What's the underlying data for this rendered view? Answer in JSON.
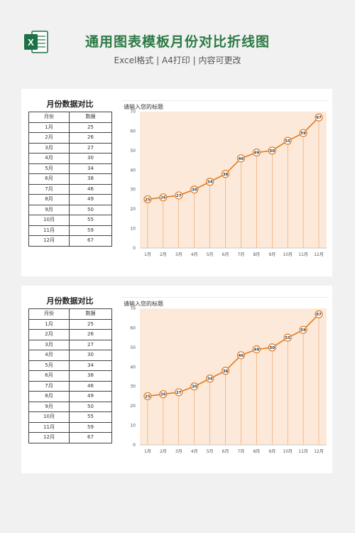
{
  "header": {
    "title": "通用图表模板月份对比折线图",
    "subtitle": "Excel格式 | A4打印 | 内容可更改"
  },
  "panel": {
    "table_title": "月份数据对比",
    "col_month": "月份",
    "col_value": "数据",
    "chart_title": "请输入您的标题"
  },
  "colors": {
    "accent": "#e07a1f",
    "fill": "#fde9d9",
    "brand": "#2d7a45"
  },
  "chart_data": [
    {
      "type": "line",
      "title": "请输入您的标题",
      "categories": [
        "1月",
        "2月",
        "3月",
        "4月",
        "5月",
        "6月",
        "7月",
        "8月",
        "9月",
        "10月",
        "11月",
        "12月"
      ],
      "values": [
        25,
        26,
        27,
        30,
        34,
        38,
        46,
        49,
        50,
        55,
        59,
        67
      ],
      "ylim": [
        0,
        70
      ],
      "yticks": [
        0,
        10,
        20,
        30,
        40,
        50,
        60,
        70
      ],
      "data_labels": true
    },
    {
      "type": "line",
      "title": "请输入您的标题",
      "categories": [
        "1月",
        "2月",
        "3月",
        "4月",
        "5月",
        "6月",
        "7月",
        "8月",
        "9月",
        "10月",
        "11月",
        "12月"
      ],
      "values": [
        25,
        26,
        27,
        30,
        34,
        38,
        46,
        49,
        50,
        55,
        59,
        67
      ],
      "ylim": [
        0,
        70
      ],
      "yticks": [
        0,
        10,
        20,
        30,
        40,
        50,
        60,
        70
      ],
      "data_labels": true
    }
  ]
}
